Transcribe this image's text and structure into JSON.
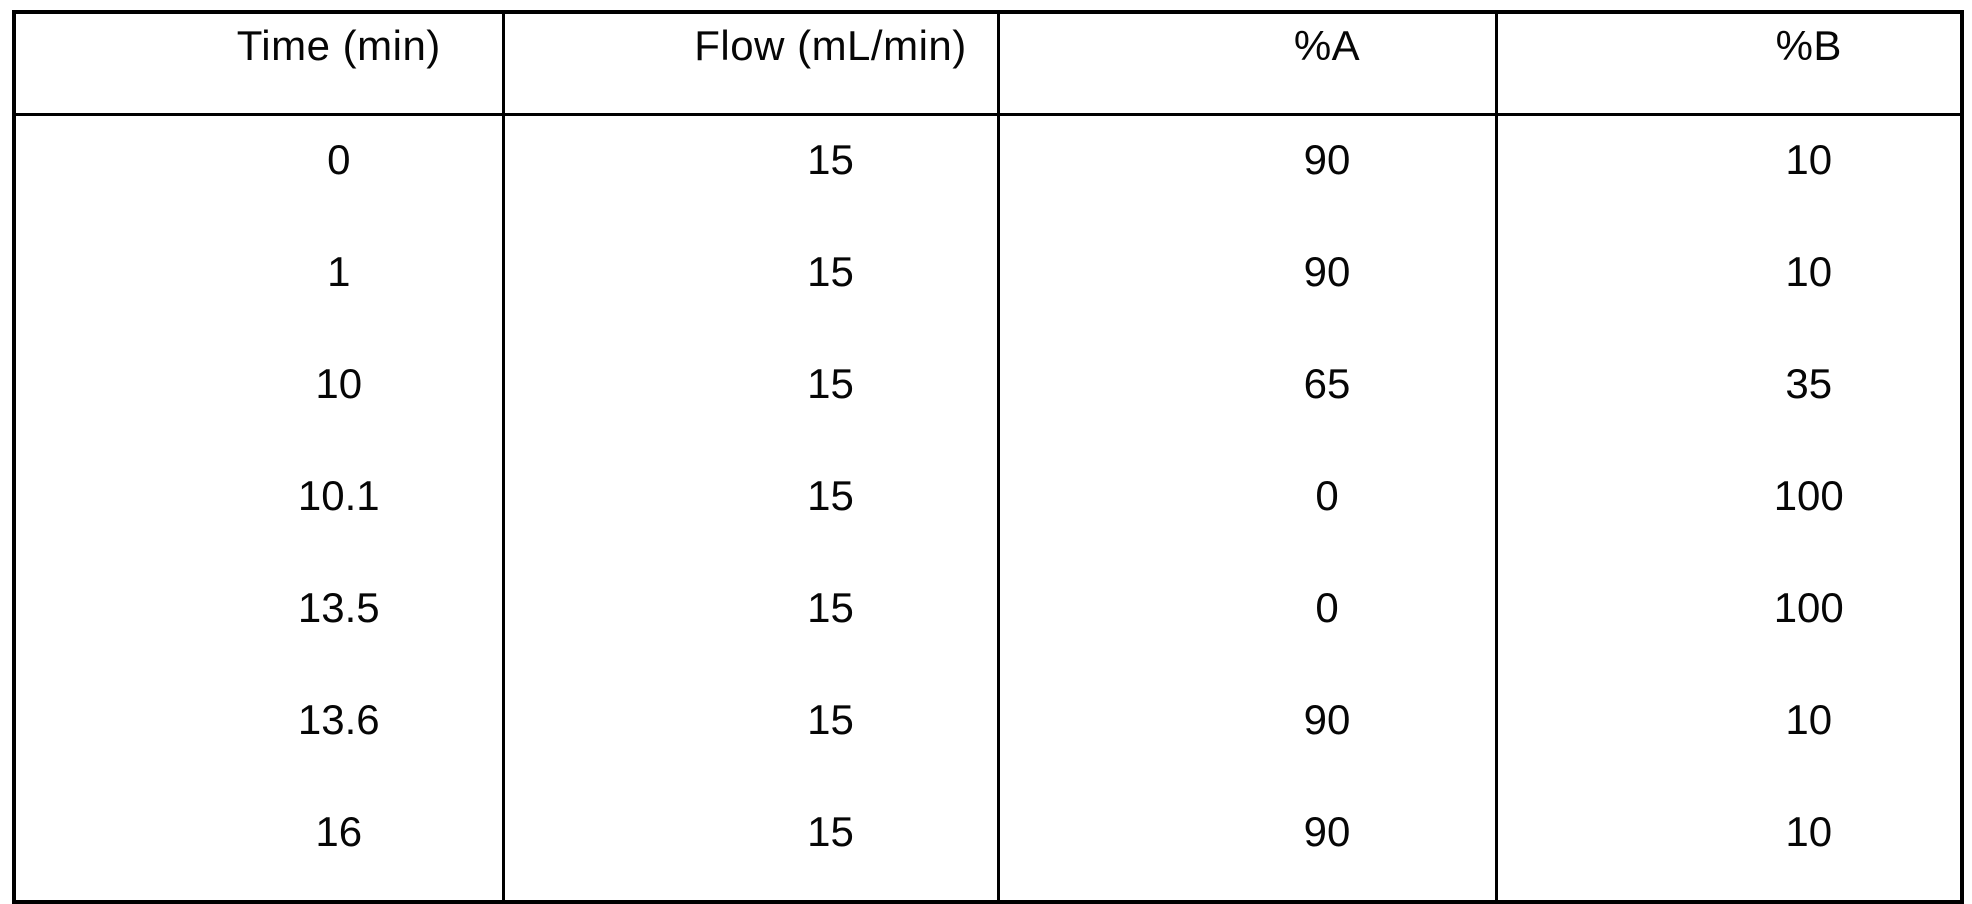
{
  "table": {
    "columns": [
      "Time (min)",
      "Flow (mL/min)",
      "%A",
      "%B"
    ],
    "rows": [
      [
        "0",
        "15",
        "90",
        "10"
      ],
      [
        "1",
        "15",
        "90",
        "10"
      ],
      [
        "10",
        "15",
        "65",
        "35"
      ],
      [
        "10.1",
        "15",
        "0",
        "100"
      ],
      [
        "13.5",
        "15",
        "0",
        "100"
      ],
      [
        "13.6",
        "15",
        "90",
        "10"
      ],
      [
        "16",
        "15",
        "90",
        "10"
      ]
    ]
  },
  "colors": {
    "background": "#ffffff",
    "border": "#000000",
    "text": "#060606"
  }
}
